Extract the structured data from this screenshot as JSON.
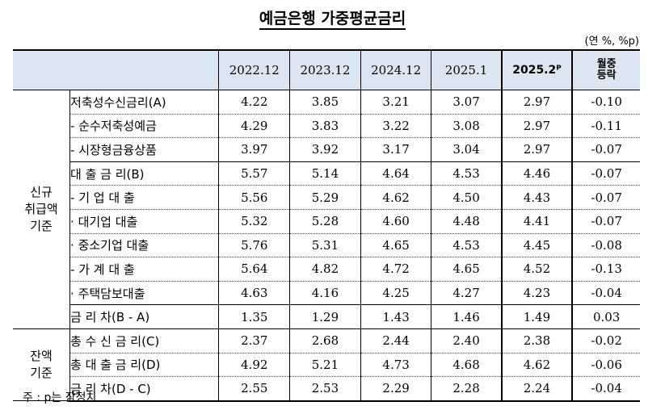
{
  "title": "예금은행 가중평균금리",
  "unit": "(연 %, %p)",
  "columns": [
    "2022.12",
    "2023.12",
    "2024.12",
    "2025.1",
    "2025.2ᴾ",
    "월중\n등락"
  ],
  "groups": {
    "new": "신규\n취급액\n기준",
    "balance": "잔액\n기준"
  },
  "rows": [
    {
      "label": "저축성수신금리(A)",
      "values": [
        "4.22",
        "3.85",
        "3.21",
        "3.07",
        "2.97",
        "-0.10"
      ]
    },
    {
      "label": "- 순수저축성예금",
      "values": [
        "4.29",
        "3.83",
        "3.22",
        "3.08",
        "2.97",
        "-0.11"
      ]
    },
    {
      "label": "- 시장형금융상품",
      "values": [
        "3.97",
        "3.92",
        "3.17",
        "3.04",
        "2.97",
        "-0.07"
      ]
    },
    {
      "label": "대 출 금 리(B)",
      "values": [
        "5.57",
        "5.14",
        "4.64",
        "4.53",
        "4.46",
        "-0.07"
      ]
    },
    {
      "label": "- 기 업 대 출",
      "values": [
        "5.56",
        "5.29",
        "4.62",
        "4.50",
        "4.43",
        "-0.07"
      ]
    },
    {
      "label": "· 대기업 대출",
      "values": [
        "5.32",
        "5.28",
        "4.60",
        "4.48",
        "4.41",
        "-0.07"
      ]
    },
    {
      "label": "· 중소기업 대출",
      "values": [
        "5.76",
        "5.31",
        "4.65",
        "4.53",
        "4.45",
        "-0.08"
      ]
    },
    {
      "label": "- 가 계 대 출",
      "values": [
        "5.64",
        "4.82",
        "4.72",
        "4.65",
        "4.52",
        "-0.13"
      ]
    },
    {
      "label": "· 주택담보대출",
      "values": [
        "4.63",
        "4.16",
        "4.25",
        "4.27",
        "4.23",
        "-0.04"
      ]
    },
    {
      "label": "금 리 차(B - A)",
      "values": [
        "1.35",
        "1.29",
        "1.43",
        "1.46",
        "1.49",
        "0.03"
      ]
    },
    {
      "label": "총 수 신 금 리(C)",
      "values": [
        "2.37",
        "2.68",
        "2.44",
        "2.40",
        "2.38",
        "-0.02"
      ]
    },
    {
      "label": "총 대 출 금 리(D)",
      "values": [
        "4.92",
        "5.21",
        "4.73",
        "4.68",
        "4.62",
        "-0.06"
      ]
    },
    {
      "label": "금 리 차(D - C)",
      "values": [
        "2.55",
        "2.53",
        "2.29",
        "2.28",
        "2.24",
        "-0.04"
      ]
    }
  ],
  "footnote": "주 : p는 잠정치"
}
